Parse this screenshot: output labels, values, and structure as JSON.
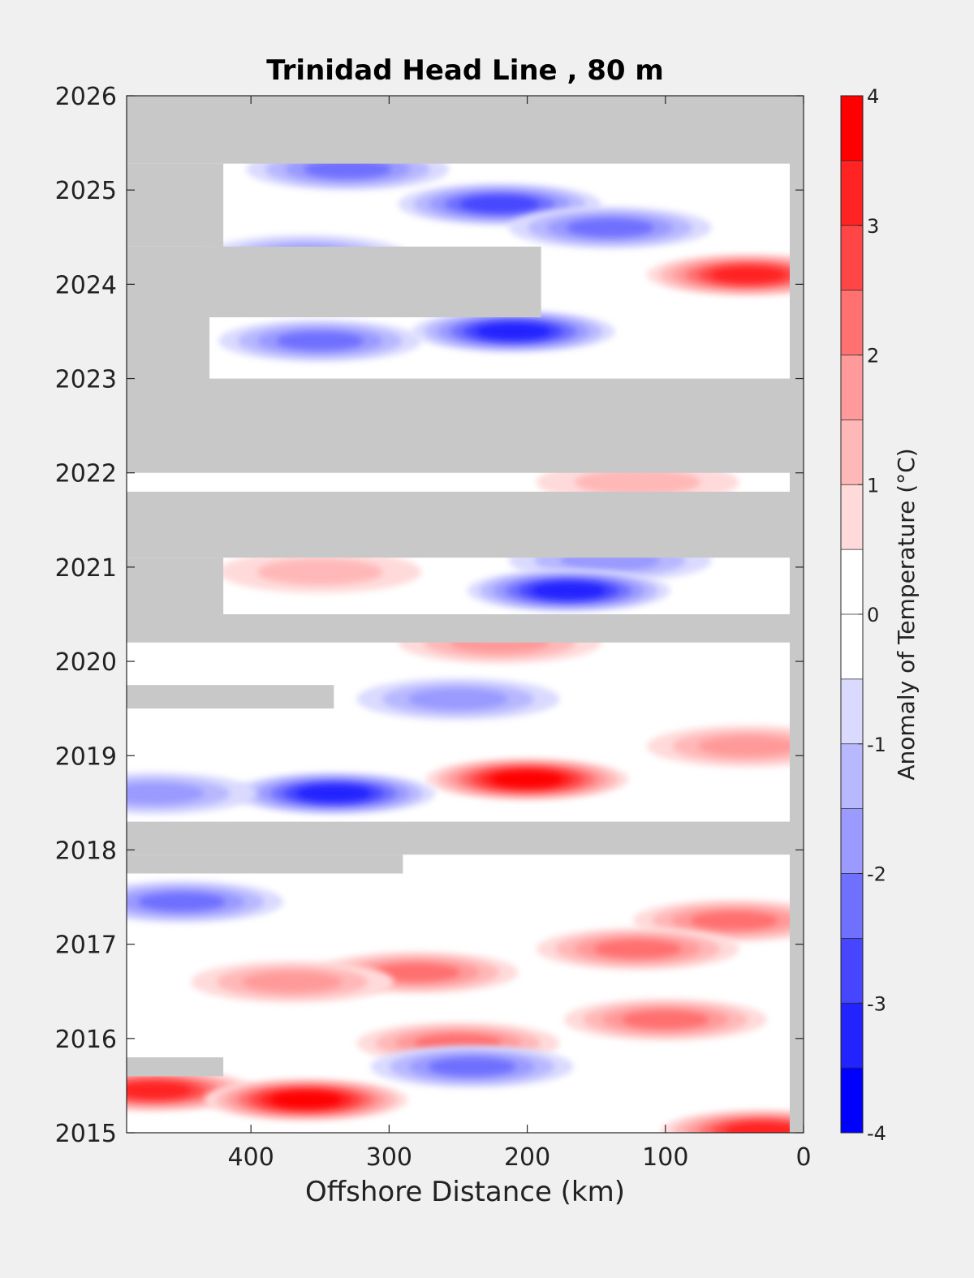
{
  "chart_data": {
    "type": "heatmap",
    "title": "Trinidad Head Line , 80 m",
    "xlabel": "Offshore Distance (km)",
    "ylabel": "",
    "xlim": [
      490,
      0
    ],
    "ylim": [
      2015,
      2026
    ],
    "x_ticks": [
      400,
      300,
      200,
      100,
      0
    ],
    "y_ticks": [
      2015,
      2016,
      2017,
      2018,
      2019,
      2020,
      2021,
      2022,
      2023,
      2024,
      2025,
      2026
    ],
    "x_tick_labels": [
      "400",
      "300",
      "200",
      "100",
      "0"
    ],
    "y_tick_labels": [
      "2015",
      "2016",
      "2017",
      "2018",
      "2019",
      "2020",
      "2021",
      "2022",
      "2023",
      "2024",
      "2025",
      "2026"
    ],
    "colorbar": {
      "label": "Anomaly of Temperature (°C)",
      "range": [
        -4,
        4
      ],
      "step": 0.5,
      "ticks": [
        4,
        3,
        2,
        1,
        0,
        -1,
        -2,
        -3,
        -4
      ],
      "tick_labels": [
        "4",
        "3",
        "2",
        "1",
        "0",
        "-1",
        "-2",
        "-3",
        "-4"
      ],
      "colors": [
        "#0000ff",
        "#2323ff",
        "#4646ff",
        "#7070ff",
        "#9a9aff",
        "#b8b8ff",
        "#dadaff",
        "#ffffff",
        "#ffffff",
        "#ffdada",
        "#ffb8b8",
        "#ff9a9a",
        "#ff7070",
        "#ff4646",
        "#ff2323",
        "#ff0000"
      ]
    },
    "no_data_color": "#c8c8c8",
    "no_data_periods": [
      {
        "from": 2025.28,
        "to": 2026.0,
        "x_from": 490,
        "x_to": 0
      },
      {
        "from": 2022.0,
        "to": 2023.0,
        "x_from": 490,
        "x_to": 0
      },
      {
        "from": 2021.1,
        "to": 2021.8,
        "x_from": 490,
        "x_to": 0
      },
      {
        "from": 2020.2,
        "to": 2020.5,
        "x_from": 490,
        "x_to": 0
      },
      {
        "from": 2017.95,
        "to": 2018.3,
        "x_from": 490,
        "x_to": 0
      },
      {
        "from": 2023.65,
        "to": 2024.4,
        "x_from": 490,
        "x_to": 190
      },
      {
        "from": 2020.5,
        "to": 2021.1,
        "x_from": 490,
        "x_to": 420
      },
      {
        "from": 2023.0,
        "to": 2023.65,
        "x_from": 490,
        "x_to": 430
      },
      {
        "from": 2024.4,
        "to": 2025.28,
        "x_from": 490,
        "x_to": 420
      },
      {
        "from": 2019.5,
        "to": 2019.75,
        "x_from": 490,
        "x_to": 340
      },
      {
        "from": 2017.75,
        "to": 2017.95,
        "x_from": 490,
        "x_to": 290
      },
      {
        "from": 2015.6,
        "to": 2015.8,
        "x_from": 490,
        "x_to": 420
      }
    ],
    "anomaly_features": [
      {
        "year": 2025.22,
        "x": 330,
        "value": -2.0
      },
      {
        "year": 2024.85,
        "x": 220,
        "value": -2.5
      },
      {
        "year": 2024.6,
        "x": 140,
        "value": -2.0
      },
      {
        "year": 2024.3,
        "x": 360,
        "value": -1.5
      },
      {
        "year": 2024.1,
        "x": 40,
        "value": 3.0
      },
      {
        "year": 2023.5,
        "x": 210,
        "value": -3.0
      },
      {
        "year": 2023.4,
        "x": 350,
        "value": -2.0
      },
      {
        "year": 2021.9,
        "x": 120,
        "value": 0.8
      },
      {
        "year": 2021.07,
        "x": 140,
        "value": -1.5
      },
      {
        "year": 2020.95,
        "x": 350,
        "value": 1.0
      },
      {
        "year": 2020.75,
        "x": 170,
        "value": -3.0
      },
      {
        "year": 2020.2,
        "x": 220,
        "value": 1.5
      },
      {
        "year": 2019.6,
        "x": 250,
        "value": -1.5
      },
      {
        "year": 2019.1,
        "x": 40,
        "value": 1.5
      },
      {
        "year": 2018.75,
        "x": 200,
        "value": 3.5
      },
      {
        "year": 2018.6,
        "x": 340,
        "value": -3.0
      },
      {
        "year": 2018.6,
        "x": 470,
        "value": -1.5
      },
      {
        "year": 2017.45,
        "x": 450,
        "value": -2.0
      },
      {
        "year": 2017.25,
        "x": 50,
        "value": 2.0
      },
      {
        "year": 2016.95,
        "x": 120,
        "value": 2.0
      },
      {
        "year": 2016.7,
        "x": 280,
        "value": 2.0
      },
      {
        "year": 2016.6,
        "x": 370,
        "value": 1.5
      },
      {
        "year": 2016.2,
        "x": 100,
        "value": 2.0
      },
      {
        "year": 2015.95,
        "x": 250,
        "value": 2.0
      },
      {
        "year": 2015.7,
        "x": 240,
        "value": -2.0
      },
      {
        "year": 2015.45,
        "x": 470,
        "value": 3.0
      },
      {
        "year": 2015.35,
        "x": 360,
        "value": 3.5
      },
      {
        "year": 2015.02,
        "x": 30,
        "value": 3.0
      }
    ]
  }
}
